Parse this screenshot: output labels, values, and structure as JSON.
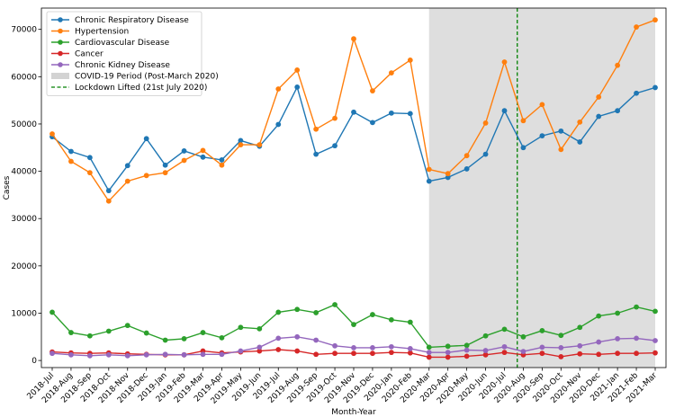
{
  "chart_data": {
    "type": "line",
    "title": "",
    "xlabel": "Month-Year",
    "ylabel": "Cases",
    "ylim": [
      -1500,
      74500
    ],
    "yticks": [
      0,
      10000,
      20000,
      30000,
      40000,
      50000,
      60000,
      70000
    ],
    "ytick_labels": [
      "0",
      "10000",
      "20000",
      "30000",
      "40000",
      "50000",
      "60000",
      "70000"
    ],
    "grid": false,
    "legend_position": "top-left",
    "categories": [
      "2018-Jul",
      "2018-Aug",
      "2018-Sep",
      "2018-Oct",
      "2018-Nov",
      "2018-Dec",
      "2019-Jan",
      "2019-Feb",
      "2019-Mar",
      "2019-Apr",
      "2019-May",
      "2019-Jun",
      "2019-Jul",
      "2019-Aug",
      "2019-Sep",
      "2019-Oct",
      "2019-Nov",
      "2019-Dec",
      "2020-Jan",
      "2020-Feb",
      "2020-Mar",
      "2020-Apr",
      "2020-May",
      "2020-Jun",
      "2020-Jul",
      "2020-Aug",
      "2020-Sep",
      "2020-Oct",
      "2020-Nov",
      "2020-Dec",
      "2021-Jan",
      "2021-Feb",
      "2021-Mar"
    ],
    "series": [
      {
        "name": "Chronic Respiratory Disease",
        "color": "#1f77b4",
        "values": [
          47300,
          44200,
          42900,
          35900,
          41200,
          46900,
          41300,
          44300,
          43000,
          42400,
          46500,
          45300,
          49900,
          57800,
          43600,
          45400,
          52500,
          50300,
          52300,
          52200,
          37900,
          38700,
          40500,
          43600,
          52800,
          45000,
          47500,
          48500,
          46200,
          51600,
          52800,
          56500,
          57700
        ]
      },
      {
        "name": "Hypertension",
        "color": "#ff7f0e",
        "values": [
          47900,
          42100,
          39700,
          33700,
          37900,
          39100,
          39700,
          42300,
          44400,
          41300,
          45600,
          45600,
          57400,
          61400,
          48900,
          51200,
          68000,
          57000,
          60800,
          63500,
          40400,
          39500,
          43300,
          50200,
          63100,
          50700,
          54100,
          44600,
          50400,
          55700,
          62400,
          70500,
          72000
        ]
      },
      {
        "name": "Cardiovascular Disease",
        "color": "#2ca02c",
        "values": [
          10200,
          5900,
          5200,
          6200,
          7400,
          5800,
          4300,
          4600,
          5900,
          4800,
          7000,
          6700,
          10200,
          10800,
          10100,
          11800,
          7600,
          9700,
          8600,
          8100,
          2800,
          3000,
          3200,
          5200,
          6600,
          5000,
          6300,
          5300,
          7000,
          9400,
          10000,
          11300,
          10400
        ]
      },
      {
        "name": "Cancer",
        "color": "#d62728",
        "values": [
          1800,
          1600,
          1500,
          1600,
          1400,
          1300,
          1200,
          1200,
          2000,
          1600,
          1800,
          2000,
          2300,
          2000,
          1300,
          1500,
          1500,
          1500,
          1700,
          1600,
          700,
          700,
          900,
          1200,
          1700,
          1200,
          1500,
          800,
          1400,
          1300,
          1500,
          1500,
          1600
        ]
      },
      {
        "name": "Chronic Kidney Disease",
        "color": "#9467bd",
        "values": [
          1500,
          1200,
          1000,
          1200,
          1000,
          1200,
          1300,
          1200,
          1300,
          1300,
          2000,
          2800,
          4700,
          5000,
          4300,
          3100,
          2700,
          2700,
          2900,
          2500,
          1700,
          1700,
          2200,
          2100,
          2900,
          1900,
          2800,
          2700,
          3100,
          3900,
          4600,
          4700,
          4200
        ]
      }
    ],
    "covid_period": {
      "label": "COVID-19 Period (Post-March 2020)",
      "start": "2020-Mar",
      "end": "2021-Mar",
      "color": "#d3d3d3"
    },
    "lockdown_lifted": {
      "label": "Lockdown Lifted (21st July 2020)",
      "position": "2020-Jul",
      "offset_fraction": 0.68,
      "color": "#008000"
    }
  }
}
